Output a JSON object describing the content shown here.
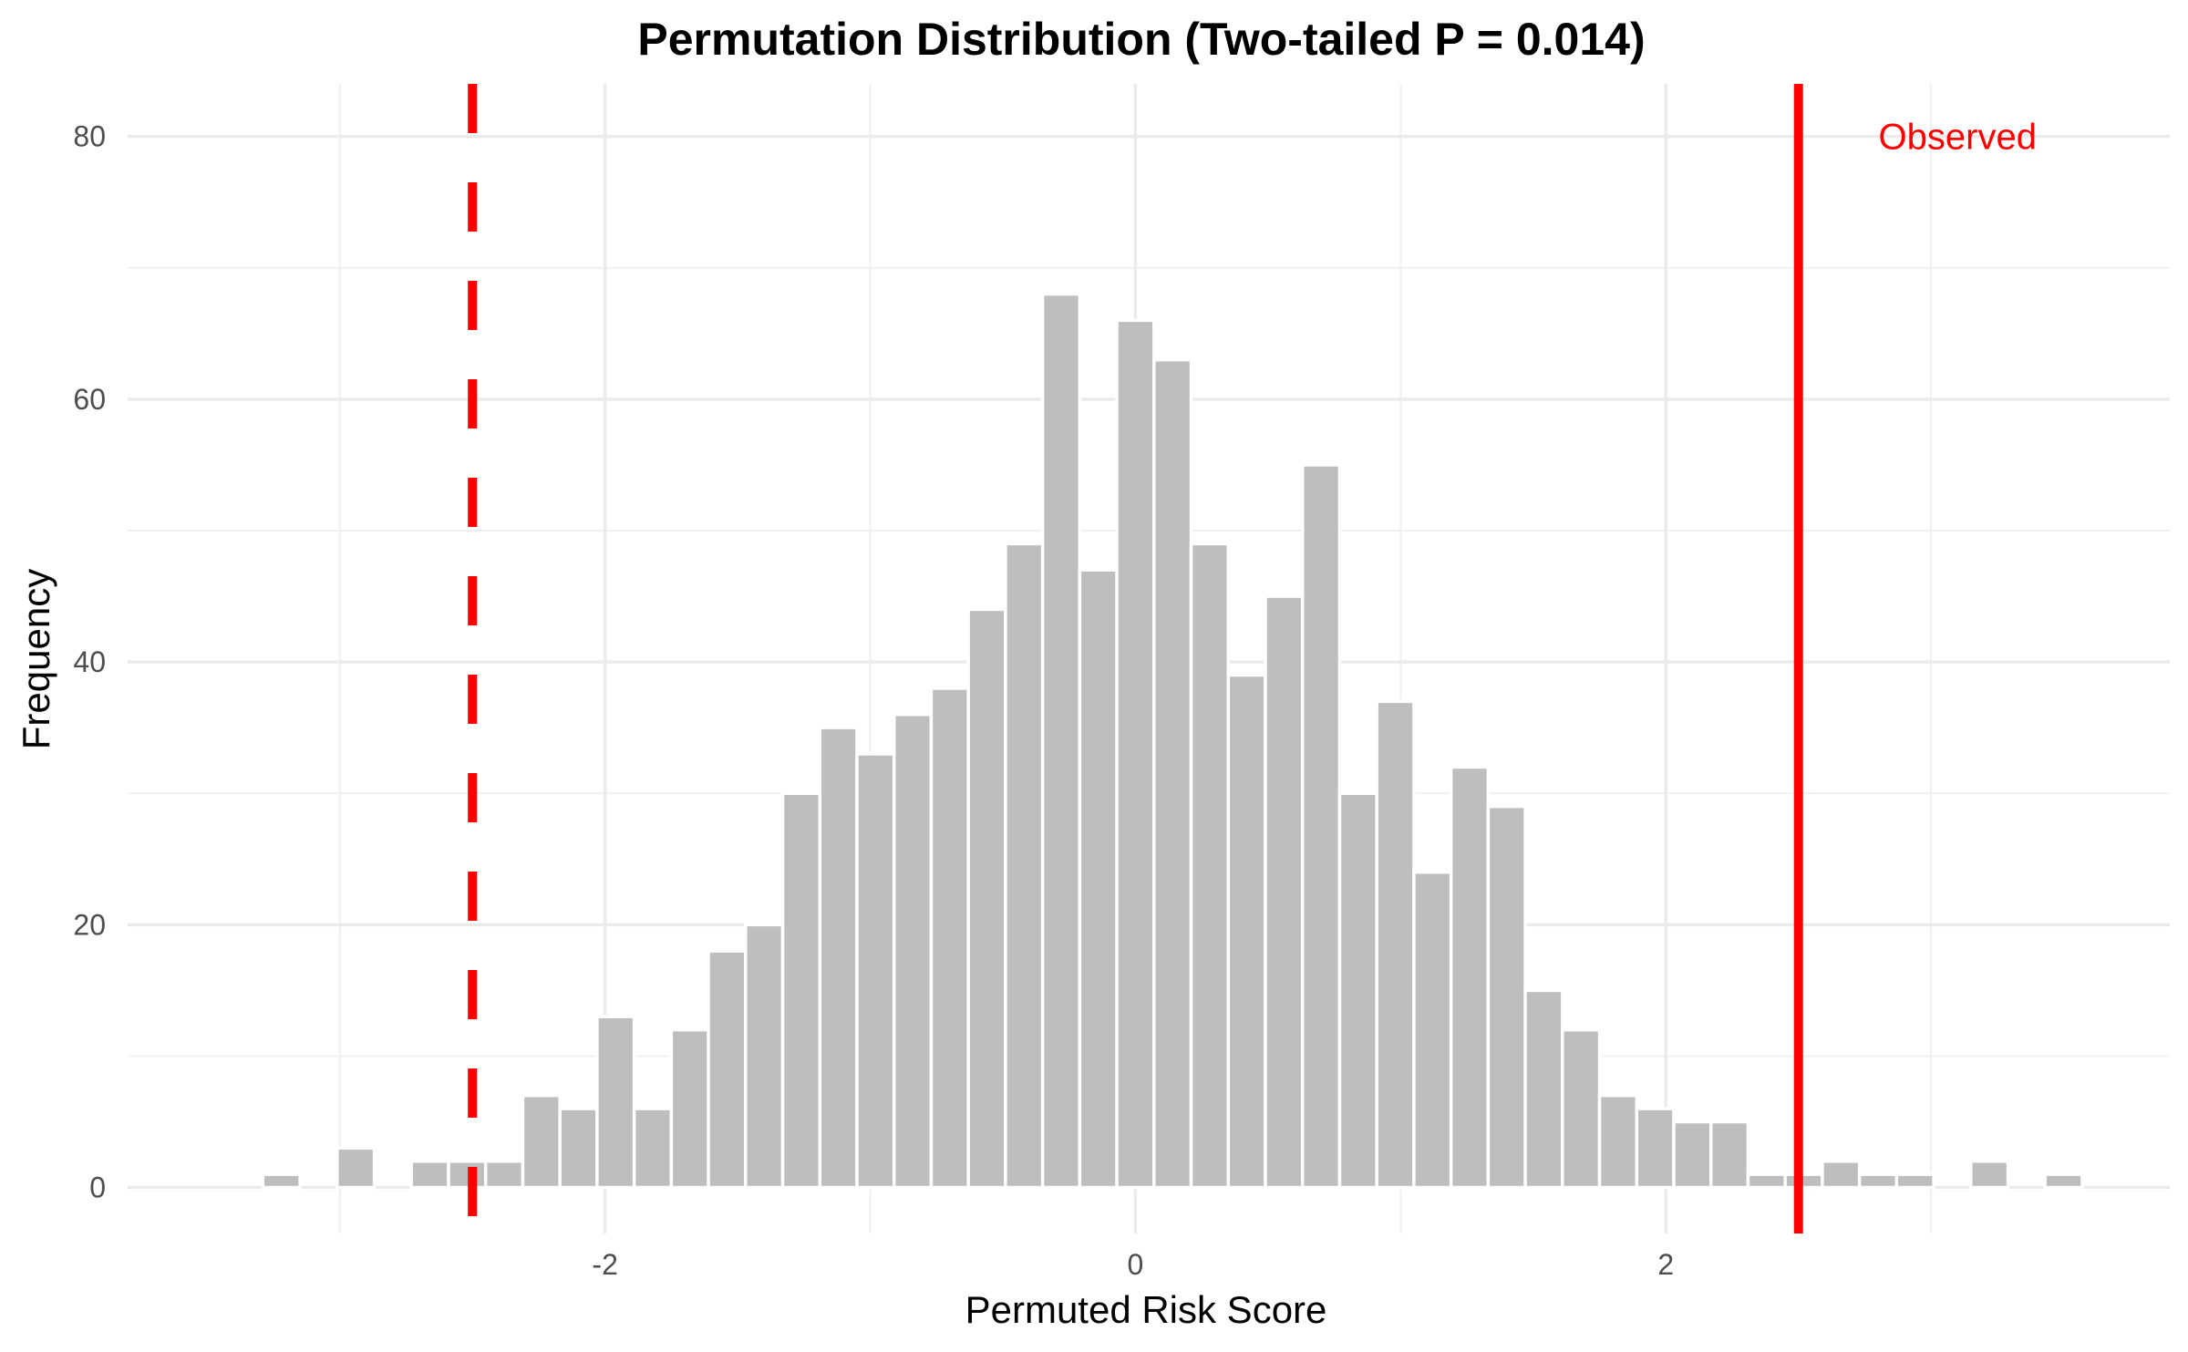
{
  "chart_data": {
    "type": "bar",
    "title": "Permutation Distribution (Two-tailed P = 0.014)",
    "xlabel": "Permuted Risk Score",
    "ylabel": "Frequency",
    "xlim": [
      -3.8,
      3.9
    ],
    "ylim": [
      -3.5,
      84
    ],
    "x_ticks": [
      -2,
      0,
      2
    ],
    "x_tick_labels": [
      "-2",
      "0",
      "2"
    ],
    "y_ticks": [
      0,
      20,
      40,
      60,
      80
    ],
    "y_tick_labels": [
      "0",
      "20",
      "40",
      "60",
      "80"
    ],
    "grid": true,
    "bin_width": 0.14,
    "bar_color": "#bebebe",
    "bins_x": [
      -3.22,
      -3.08,
      -2.94,
      -2.8,
      -2.66,
      -2.52,
      -2.38,
      -2.24,
      -2.1,
      -1.96,
      -1.82,
      -1.68,
      -1.54,
      -1.4,
      -1.26,
      -1.12,
      -0.98,
      -0.84,
      -0.7,
      -0.56,
      -0.42,
      -0.28,
      -0.14,
      0.0,
      0.14,
      0.28,
      0.42,
      0.56,
      0.7,
      0.84,
      0.98,
      1.12,
      1.26,
      1.4,
      1.54,
      1.68,
      1.82,
      1.96,
      2.1,
      2.24,
      2.38,
      2.52,
      2.66,
      2.8,
      2.94,
      3.08,
      3.22,
      3.36,
      3.5
    ],
    "counts": [
      1,
      0,
      3,
      0,
      2,
      2,
      2,
      7,
      6,
      13,
      6,
      12,
      18,
      20,
      30,
      35,
      33,
      36,
      38,
      44,
      49,
      68,
      47,
      66,
      63,
      49,
      39,
      45,
      55,
      30,
      37,
      24,
      32,
      29,
      15,
      12,
      7,
      6,
      5,
      5,
      1,
      1,
      2,
      1,
      1,
      0,
      2,
      0,
      1
    ],
    "reference_lines": [
      {
        "x": 2.5,
        "style": "solid",
        "color": "#ff0000",
        "label": "Observed"
      },
      {
        "x": -2.5,
        "style": "dashed",
        "color": "#ff0000",
        "label": ""
      }
    ],
    "annotation": {
      "text": "Observed",
      "x": 3.1,
      "y": 80,
      "color": "#ff0000"
    }
  }
}
